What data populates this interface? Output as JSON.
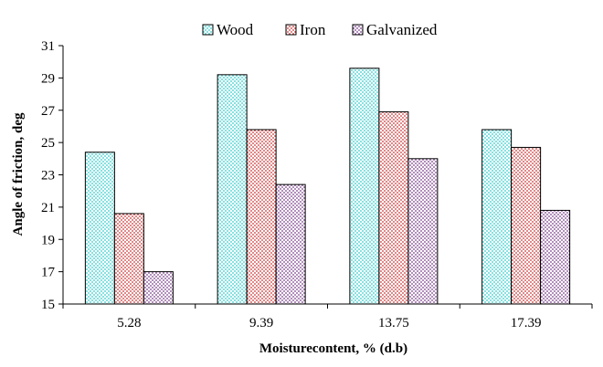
{
  "chart_data": {
    "type": "bar",
    "title": "",
    "xlabel": "Moisturecontent, % (d.b)",
    "ylabel": "Angle of friction, deg",
    "categories": [
      "5.28",
      "9.39",
      "13.75",
      "17.39"
    ],
    "ylim": [
      15,
      31
    ],
    "yticks": [
      15,
      17,
      19,
      21,
      23,
      25,
      27,
      29,
      31
    ],
    "grid": false,
    "legend_position": "top",
    "series": [
      {
        "name": "Wood",
        "values": [
          24.4,
          29.2,
          29.6,
          25.8
        ],
        "color": "#33cccc",
        "pattern": "dots"
      },
      {
        "name": "Iron",
        "values": [
          20.6,
          25.8,
          26.9,
          24.7
        ],
        "color": "#cc3333",
        "pattern": "dots"
      },
      {
        "name": "Galvanized",
        "values": [
          17.0,
          22.4,
          24.0,
          20.8
        ],
        "color": "#7a3d8c",
        "pattern": "dots"
      }
    ]
  }
}
